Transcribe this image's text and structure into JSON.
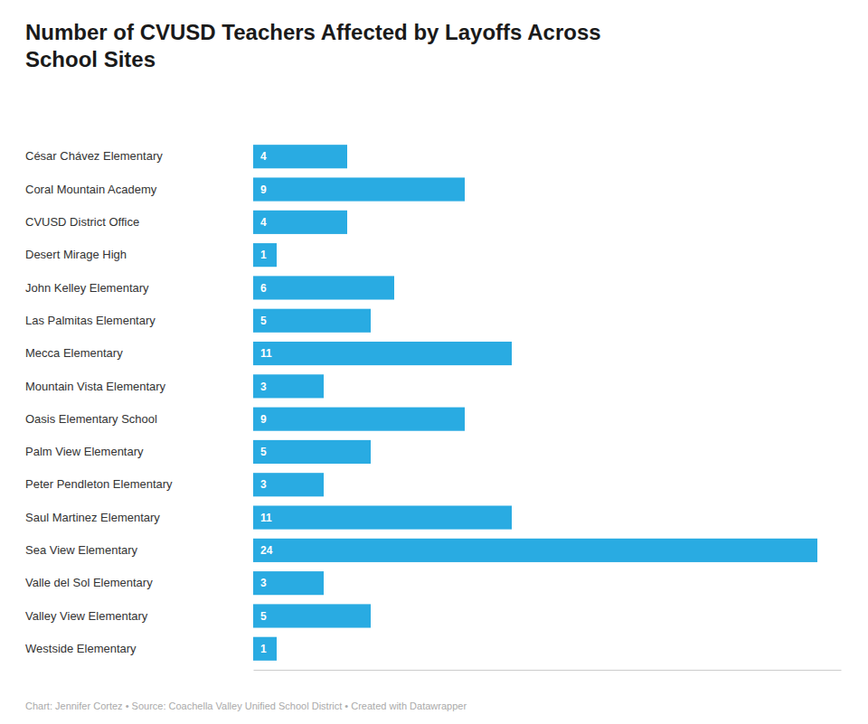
{
  "chart_data": {
    "type": "bar",
    "orientation": "horizontal",
    "title": "Number of CVUSD Teachers Affected by Layoffs Across\nSchool Sites",
    "categories": [
      "César Chávez Elementary",
      "Coral Mountain Academy",
      "CVUSD District Office",
      "Desert Mirage High",
      "John Kelley Elementary",
      "Las Palmitas Elementary",
      "Mecca Elementary",
      "Mountain Vista Elementary",
      "Oasis Elementary School",
      "Palm View Elementary",
      "Peter Pendleton Elementary",
      "Saul Martinez Elementary",
      "Sea View Elementary",
      "Valle del Sol Elementary",
      "Valley View Elementary",
      "Westside Elementary"
    ],
    "values": [
      4,
      9,
      4,
      1,
      6,
      5,
      11,
      3,
      9,
      5,
      3,
      11,
      24,
      3,
      5,
      1
    ],
    "color": "#29abe2",
    "xlim": [
      0,
      25
    ],
    "data_labels": true,
    "tick_labels": "y",
    "footer": "Chart: Jennifer Cortez • Source: Coachella Valley Unified School District • Created with Datawrapper"
  }
}
